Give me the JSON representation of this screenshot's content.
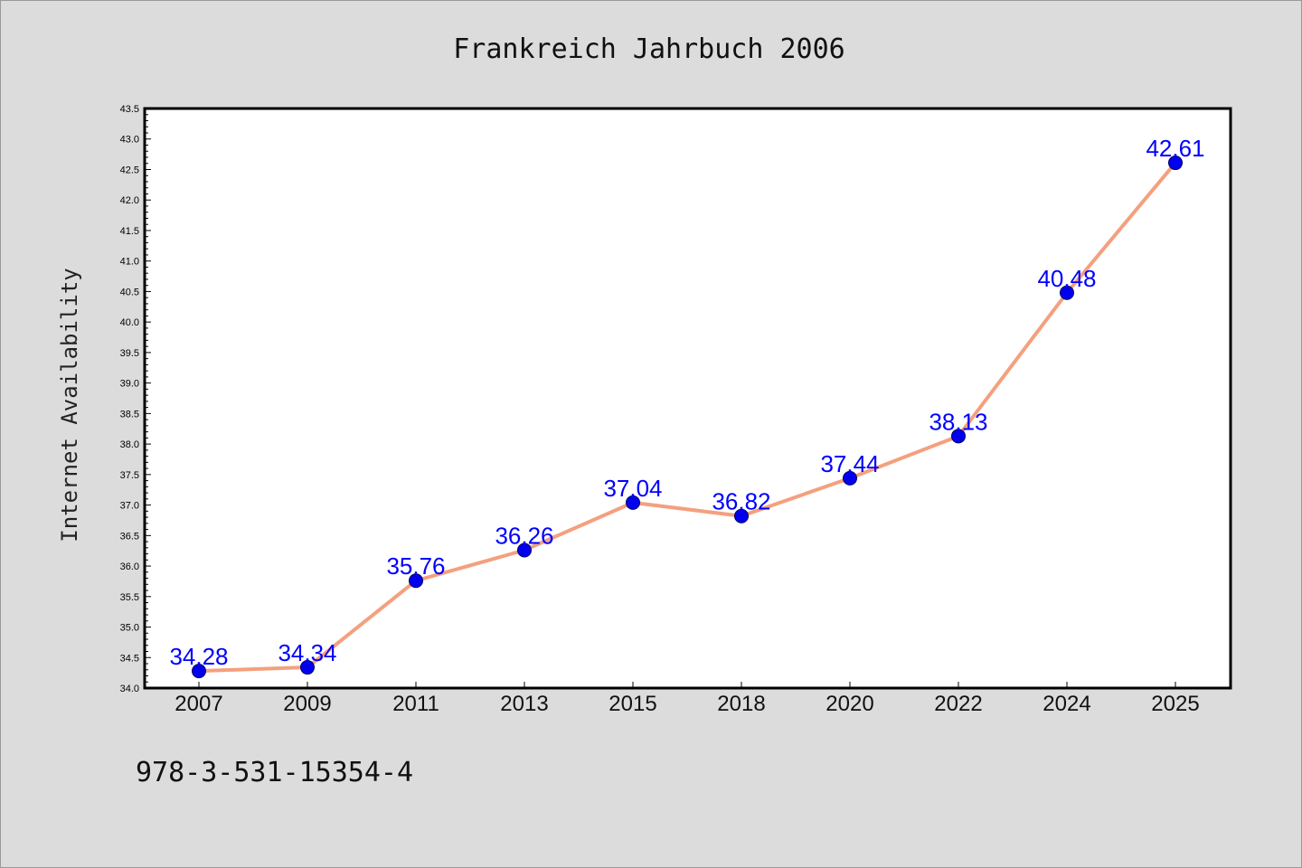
{
  "chart_data": {
    "type": "line",
    "title": "Frankreich Jahrbuch 2006",
    "xlabel": "",
    "ylabel": "Internet Availability",
    "categories": [
      "2007",
      "2009",
      "2011",
      "2013",
      "2015",
      "2018",
      "2020",
      "2022",
      "2024",
      "2025"
    ],
    "series": [
      {
        "values": [
          34.28,
          34.34,
          35.76,
          36.26,
          37.04,
          36.82,
          37.44,
          38.13,
          40.48,
          42.61
        ]
      }
    ],
    "data_labels": [
      "34.28",
      "34.34",
      "35.76",
      "36.26",
      "37.04",
      "36.82",
      "37.44",
      "38.13",
      "40.48",
      "42.61"
    ],
    "ylim": [
      34.0,
      43.5
    ],
    "y_ticks": [
      "34.0",
      "34.5",
      "35.0",
      "35.5",
      "36.0",
      "36.5",
      "37.0",
      "37.5",
      "38.0",
      "38.5",
      "39.0",
      "39.5",
      "40.0",
      "40.5",
      "41.0",
      "41.5",
      "42.0",
      "42.5",
      "43.0",
      "43.5"
    ],
    "y_tick_step": 0.5,
    "y_minor_step": 0.1,
    "grid": false,
    "legend": "none",
    "line_color": "#f4a07e",
    "marker_color": "#0000ee",
    "label_color": "#0000ff",
    "background_color": "#dcdcdc",
    "plot_background": "#ffffff"
  },
  "footer_text": "978-3-531-15354-4"
}
